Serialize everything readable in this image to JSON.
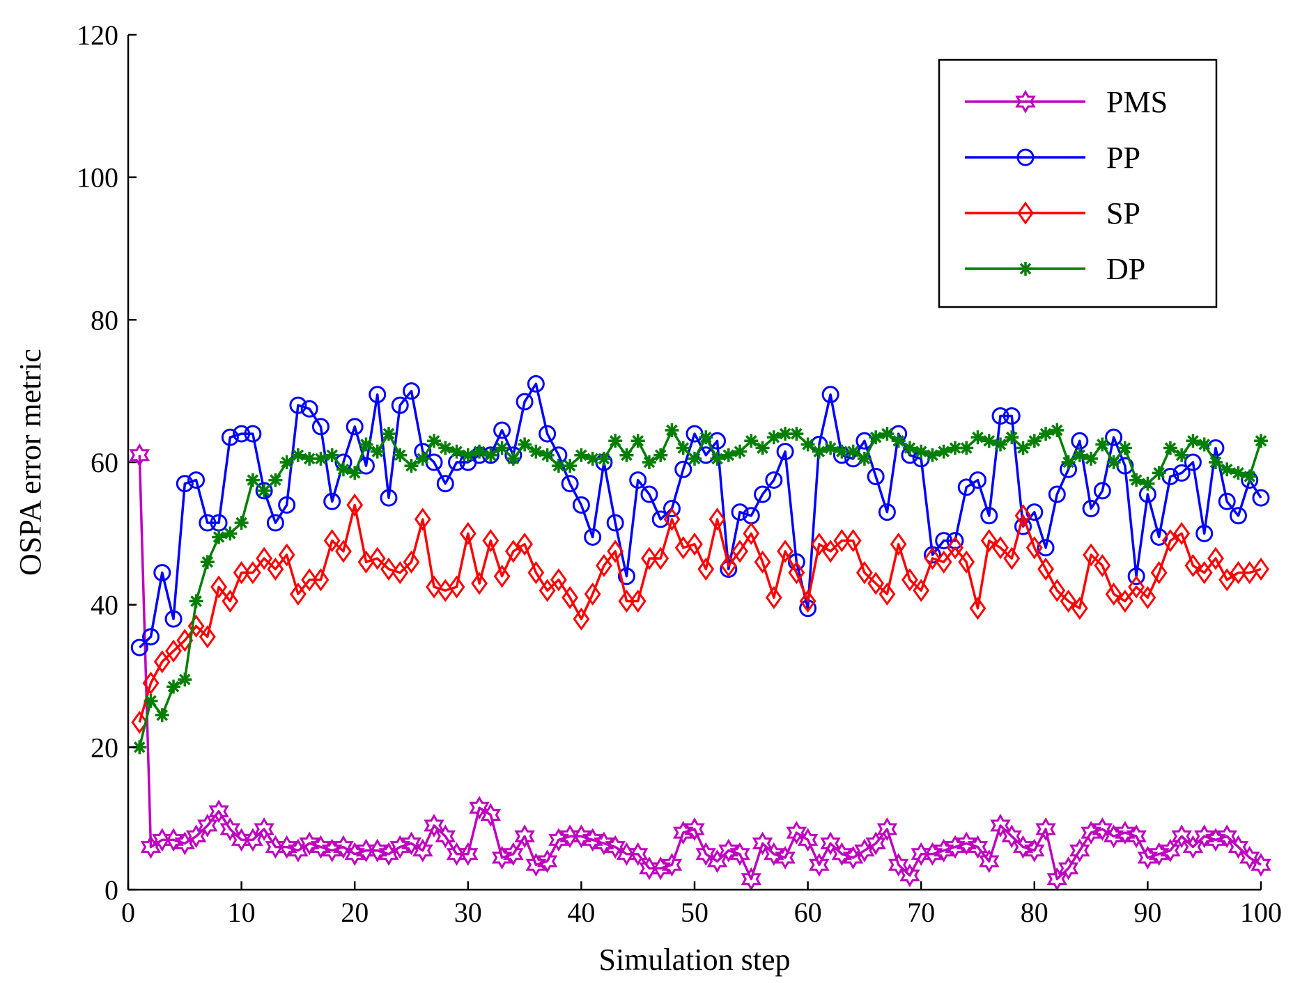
{
  "chart_data": {
    "type": "line",
    "title": "",
    "xlabel": "Simulation step",
    "ylabel": "OSPA error metric",
    "xlim": [
      0,
      100
    ],
    "ylim": [
      0,
      120
    ],
    "xticks": [
      0,
      10,
      20,
      30,
      40,
      50,
      60,
      70,
      80,
      90,
      100
    ],
    "yticks": [
      0,
      20,
      40,
      60,
      80,
      100,
      120
    ],
    "legend_position": "top-right",
    "grid": false,
    "x": [
      1,
      2,
      3,
      4,
      5,
      6,
      7,
      8,
      9,
      10,
      11,
      12,
      13,
      14,
      15,
      16,
      17,
      18,
      19,
      20,
      21,
      22,
      23,
      24,
      25,
      26,
      27,
      28,
      29,
      30,
      31,
      32,
      33,
      34,
      35,
      36,
      37,
      38,
      39,
      40,
      41,
      42,
      43,
      44,
      45,
      46,
      47,
      48,
      49,
      50,
      51,
      52,
      53,
      54,
      55,
      56,
      57,
      58,
      59,
      60,
      61,
      62,
      63,
      64,
      65,
      66,
      67,
      68,
      69,
      70,
      71,
      72,
      73,
      74,
      75,
      76,
      77,
      78,
      79,
      80,
      81,
      82,
      83,
      84,
      85,
      86,
      87,
      88,
      89,
      90,
      91,
      92,
      93,
      94,
      95,
      96,
      97,
      98,
      99,
      100
    ],
    "series": [
      {
        "name": "PMS",
        "color": "#bf00bf",
        "marker": "hexagram",
        "values": [
          61,
          6,
          7,
          7,
          6.5,
          7.5,
          9,
          11,
          8.5,
          7,
          7,
          8.5,
          6,
          6,
          5.5,
          6.5,
          6,
          5.5,
          6,
          5,
          5.5,
          5.5,
          5,
          6,
          6.5,
          5.5,
          9,
          7.5,
          5,
          5,
          11.5,
          10.5,
          4.5,
          5,
          7.5,
          3.5,
          4,
          7,
          7.5,
          7.5,
          7,
          6.5,
          6,
          5,
          5,
          3,
          3,
          3.5,
          8,
          8.5,
          5,
          4,
          5.5,
          5,
          1.5,
          6.5,
          5,
          4.5,
          8,
          7,
          3.5,
          6.5,
          5,
          4.5,
          5.5,
          6.5,
          8.5,
          3.5,
          2,
          5,
          5,
          5.5,
          6,
          6.5,
          6,
          4,
          9,
          7.5,
          6,
          5.5,
          8.5,
          1.5,
          3,
          5.5,
          8,
          8.5,
          7.5,
          8,
          7.5,
          4.5,
          5,
          5.5,
          7.5,
          6,
          7.5,
          7,
          7.5,
          6,
          4.5,
          3.5
        ]
      },
      {
        "name": "PP",
        "color": "#0000ff",
        "marker": "circle",
        "values": [
          34,
          35.5,
          44.5,
          38,
          57,
          57.5,
          51.5,
          51.5,
          63.5,
          64,
          64,
          56,
          51.5,
          54,
          68,
          67.5,
          65,
          54.5,
          60,
          65,
          59.5,
          69.5,
          55,
          68,
          70,
          61.5,
          60,
          57,
          60,
          60,
          61,
          61,
          64.5,
          61,
          68.5,
          71,
          64,
          61,
          57,
          54,
          49.5,
          60,
          51.5,
          44,
          57.5,
          55.5,
          52,
          53.5,
          59,
          64,
          61,
          63,
          45,
          53,
          52.5,
          55.5,
          57.5,
          61.5,
          46,
          39.5,
          62.5,
          69.5,
          61,
          60.5,
          63,
          58,
          53,
          64,
          61,
          60.5,
          47,
          49,
          49,
          56.5,
          57.5,
          52.5,
          66.5,
          66.5,
          51,
          53,
          48,
          55.5,
          59,
          63,
          53.5,
          56,
          63.5,
          59.5,
          44,
          55.5,
          49.5,
          58,
          58.5,
          60,
          50,
          62,
          54.5,
          52.5,
          57.5,
          55
        ]
      },
      {
        "name": "SP",
        "color": "#ff0000",
        "marker": "diamond",
        "values": [
          23.5,
          29,
          32,
          33.5,
          35,
          37,
          35.5,
          42.5,
          40.5,
          44.5,
          44.5,
          46.5,
          45,
          47,
          41.5,
          43.5,
          43.5,
          49,
          47.5,
          54,
          46,
          46.5,
          45,
          44.5,
          46,
          52,
          42.5,
          42,
          42.5,
          50,
          43,
          49,
          44,
          47.5,
          48.5,
          44.5,
          42,
          43.5,
          41,
          38,
          41.5,
          45.5,
          47.5,
          40.5,
          40.5,
          46.5,
          46.5,
          52,
          48,
          48.5,
          45,
          52,
          45.5,
          47.5,
          50,
          46,
          41,
          47.5,
          44.5,
          40.5,
          48.5,
          47.5,
          49,
          49,
          44.5,
          43,
          41.5,
          48.5,
          43.5,
          42,
          46.5,
          46,
          48,
          46,
          39.5,
          49,
          48,
          46.5,
          52.5,
          48,
          45,
          42,
          40.5,
          39.5,
          47,
          45.5,
          41.5,
          40.5,
          42.5,
          41,
          44.5,
          49,
          50,
          45.5,
          44.5,
          46.5,
          43.5,
          44.5,
          44.5,
          45
        ]
      },
      {
        "name": "DP",
        "color": "#007f00",
        "marker": "asterisk",
        "values": [
          20,
          26.5,
          24.5,
          28.5,
          29.5,
          40.5,
          46,
          49.5,
          50,
          51.5,
          57.5,
          56,
          57.5,
          60,
          61,
          60.5,
          60.5,
          61,
          59,
          58.5,
          62.5,
          61.5,
          64,
          61,
          59.5,
          60.5,
          63,
          62,
          61.5,
          61,
          61.5,
          61,
          62,
          60.5,
          62.5,
          61.5,
          61,
          59.5,
          59.5,
          61,
          60.5,
          60.5,
          63,
          61,
          63,
          60,
          61,
          64.5,
          62,
          60.5,
          63.5,
          60.5,
          61,
          61.5,
          63,
          62,
          63.5,
          64,
          64,
          62.5,
          61.5,
          62,
          61.5,
          61.5,
          60.5,
          63.5,
          64,
          63,
          62,
          61.5,
          61,
          61.5,
          62,
          62,
          63.5,
          63,
          62.5,
          63.5,
          62,
          63,
          64,
          64.5,
          60,
          61,
          60.5,
          62.5,
          60,
          62,
          57.5,
          57,
          58.5,
          62,
          61,
          63,
          62.5,
          60,
          59,
          58.5,
          58,
          63
        ]
      }
    ]
  }
}
